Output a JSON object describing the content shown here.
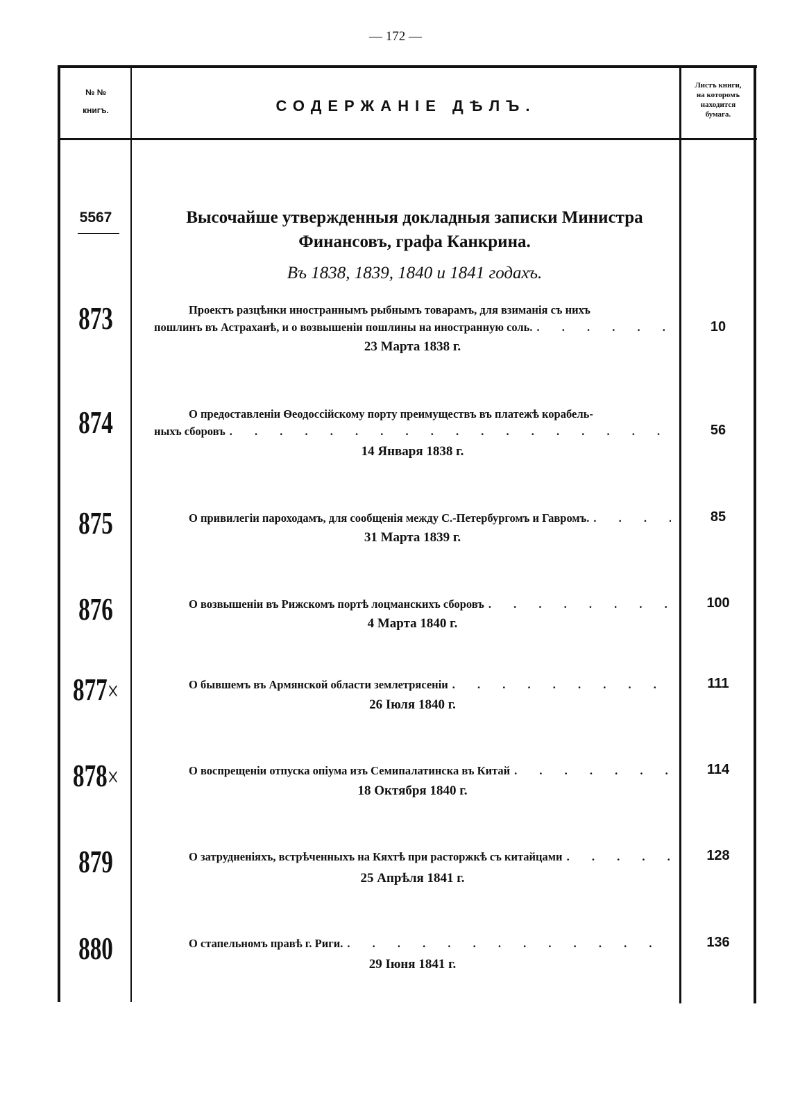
{
  "page_number": "— 172 —",
  "header": {
    "col_num_line1": "№ №",
    "col_num_line2": "книгъ.",
    "col_content": "СОДЕРЖАНІЕ ДѢЛЪ.",
    "col_page": [
      "Листъ книги,",
      "на которомъ",
      "находится",
      "бумага."
    ]
  },
  "section": {
    "book_number": "5567",
    "title_line1": "Высочайше утвержденныя докладныя записки Министра",
    "title_line2": "Финансовъ, графа Канкрина.",
    "subtitle": "Въ 1838, 1839, 1840 и 1841 годахъ."
  },
  "entries": [
    {
      "num": "873",
      "mark": "",
      "lines": [
        "Проектъ разцѣнки иностраннымъ рыбнымъ товарамъ, для взиманія съ нихъ",
        "пошлинъ въ Астраханѣ, и о возвышеніи пошлины на иностранную соль."
      ],
      "date": "23 Марта 1838 г.",
      "page": "10"
    },
    {
      "num": "874",
      "mark": "",
      "lines": [
        "О предоставленіи Ѳеодоссійскому порту преимуществъ въ платежѣ корабель-",
        "ныхъ сборовъ"
      ],
      "date": "14 Января 1838 г.",
      "page": "56"
    },
    {
      "num": "875",
      "mark": "",
      "lines": [
        "О привилегіи пароходамъ, для сообщенія между С.-Петербургомъ и Гавромъ."
      ],
      "date": "31 Марта 1839 г.",
      "page": "85"
    },
    {
      "num": "876",
      "mark": "",
      "lines": [
        "О возвышеніи въ Рижскомъ портѣ лоцманскихъ сборовъ"
      ],
      "date": "4 Марта 1840 г.",
      "page": "100"
    },
    {
      "num": "877",
      "mark": "×",
      "lines": [
        "О бывшемъ въ Армянской области землетрясеніи"
      ],
      "date": "26 Іюля 1840 г.",
      "page": "111"
    },
    {
      "num": "878",
      "mark": "×",
      "lines": [
        "О воспрещеніи отпуска опіума изъ Семипалатинска въ Китай"
      ],
      "date": "18 Октября 1840 г.",
      "page": "114"
    },
    {
      "num": "879",
      "mark": "",
      "lines": [
        "О затрудненіяхъ, встрѣченныхъ на Кяхтѣ при расторжкѣ съ китайцами"
      ],
      "date": "25 Апрѣля 1841 г.",
      "page": "128"
    },
    {
      "num": "880",
      "mark": "",
      "lines": [
        "О стапельномъ правѣ г. Риги."
      ],
      "date": "29 Іюня 1841 г.",
      "page": "136"
    }
  ]
}
